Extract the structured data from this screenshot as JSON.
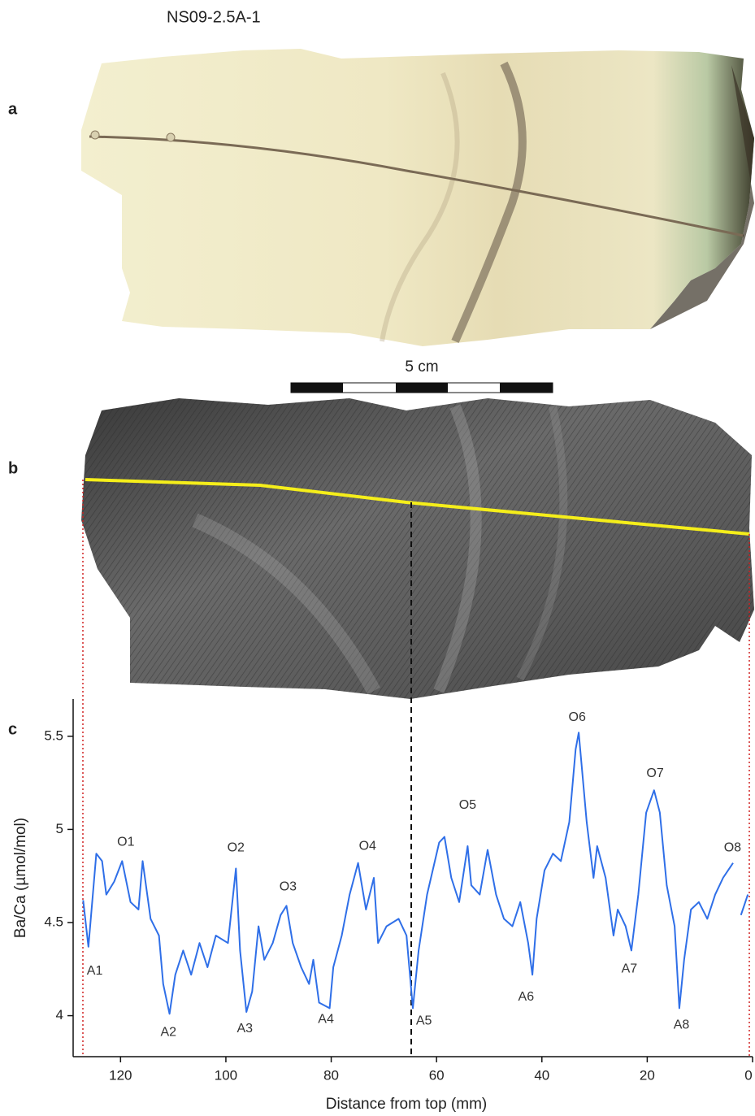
{
  "figure_title": "NS09-2.5A-1",
  "panel_labels": [
    "a",
    "b",
    "c"
  ],
  "scale_label": "5 cm",
  "chart_data": {
    "type": "line",
    "xlabel": "Distance from top (mm)",
    "ylabel": "Ba/Ca (µmol/mol)",
    "xlim": [
      129,
      0
    ],
    "ylim": [
      3.78,
      5.7
    ],
    "xticks": [
      120,
      100,
      80,
      60,
      40,
      20,
      0
    ],
    "yticks": [
      4,
      4.5,
      5,
      5.5
    ],
    "x": [
      127.1,
      126.1,
      124.6,
      123.5,
      122.7,
      121.2,
      119.7,
      118.1,
      116.6,
      115.8,
      114.3,
      112.7,
      111.9,
      110.7,
      109.6,
      108.1,
      106.6,
      105.0,
      103.5,
      101.9,
      99.6,
      98.1,
      97.3,
      96.1,
      95.0,
      93.8,
      92.7,
      91.1,
      89.6,
      88.5,
      87.3,
      85.7,
      84.2,
      83.4,
      82.3,
      80.3,
      79.6,
      78.0,
      76.5,
      74.9,
      73.4,
      71.9,
      71.1,
      69.5,
      67.2,
      65.7,
      64.5,
      63.4,
      61.8,
      59.5,
      58.5,
      57.2,
      55.7,
      54.1,
      53.4,
      51.8,
      50.3,
      48.7,
      47.2,
      45.6,
      44.1,
      42.6,
      41.8,
      41.0,
      39.5,
      37.9,
      36.4,
      34.8,
      33.6,
      33.0,
      31.5,
      30.2,
      29.5,
      27.9,
      26.4,
      25.6,
      24.1,
      23.0,
      21.7,
      20.2,
      18.7,
      17.6,
      16.3,
      14.8,
      13.9,
      13.0,
      11.7,
      10.2,
      8.6,
      7.1,
      5.6,
      3.7,
      2.9,
      2.2,
      0.9
    ],
    "series": [
      {
        "color": "#2f6fe8",
        "values": [
          4.62,
          4.37,
          4.87,
          4.83,
          4.65,
          4.72,
          4.83,
          4.61,
          4.57,
          4.83,
          4.52,
          4.43,
          4.17,
          4.01,
          4.22,
          4.35,
          4.22,
          4.39,
          4.26,
          4.43,
          4.39,
          4.79,
          4.35,
          4.02,
          4.13,
          4.48,
          4.3,
          4.39,
          4.54,
          4.59,
          4.39,
          4.26,
          4.17,
          4.3,
          4.07,
          4.04,
          4.26,
          4.43,
          4.65,
          4.82,
          4.57,
          4.74,
          4.39,
          4.48,
          4.52,
          4.43,
          4.04,
          4.35,
          4.65,
          4.93,
          4.96,
          4.74,
          4.61,
          4.91,
          4.7,
          4.65,
          4.89,
          4.65,
          4.52,
          4.48,
          4.61,
          4.39,
          4.22,
          4.52,
          4.78,
          4.87,
          4.83,
          5.04,
          5.43,
          5.52,
          5.04,
          4.74,
          4.91,
          4.74,
          4.43,
          4.57,
          4.48,
          4.35,
          4.65,
          5.09,
          5.21,
          5.09,
          4.7,
          4.48,
          4.04,
          4.3,
          4.57,
          4.61,
          4.52,
          4.65,
          4.74,
          4.82,
          null,
          4.54,
          4.65
        ]
      }
    ],
    "annotations": [
      {
        "text": "O1",
        "x": 119.0,
        "y": 4.93
      },
      {
        "text": "O2",
        "x": 98.1,
        "y": 4.9
      },
      {
        "text": "O3",
        "x": 88.2,
        "y": 4.69
      },
      {
        "text": "O4",
        "x": 73.1,
        "y": 4.91
      },
      {
        "text": "O5",
        "x": 54.1,
        "y": 5.13
      },
      {
        "text": "O6",
        "x": 33.3,
        "y": 5.6
      },
      {
        "text": "O7",
        "x": 18.5,
        "y": 5.3
      },
      {
        "text": "O8",
        "x": 3.8,
        "y": 4.9
      },
      {
        "text": "A1",
        "x": 124.9,
        "y": 4.24
      },
      {
        "text": "A2",
        "x": 110.9,
        "y": 3.91
      },
      {
        "text": "A3",
        "x": 96.4,
        "y": 3.93
      },
      {
        "text": "A4",
        "x": 81.0,
        "y": 3.98
      },
      {
        "text": "A5",
        "x": 62.4,
        "y": 3.97
      },
      {
        "text": "A6",
        "x": 43.0,
        "y": 4.1
      },
      {
        "text": "A7",
        "x": 23.4,
        "y": 4.25
      },
      {
        "text": "A8",
        "x": 13.5,
        "y": 3.95
      }
    ]
  }
}
